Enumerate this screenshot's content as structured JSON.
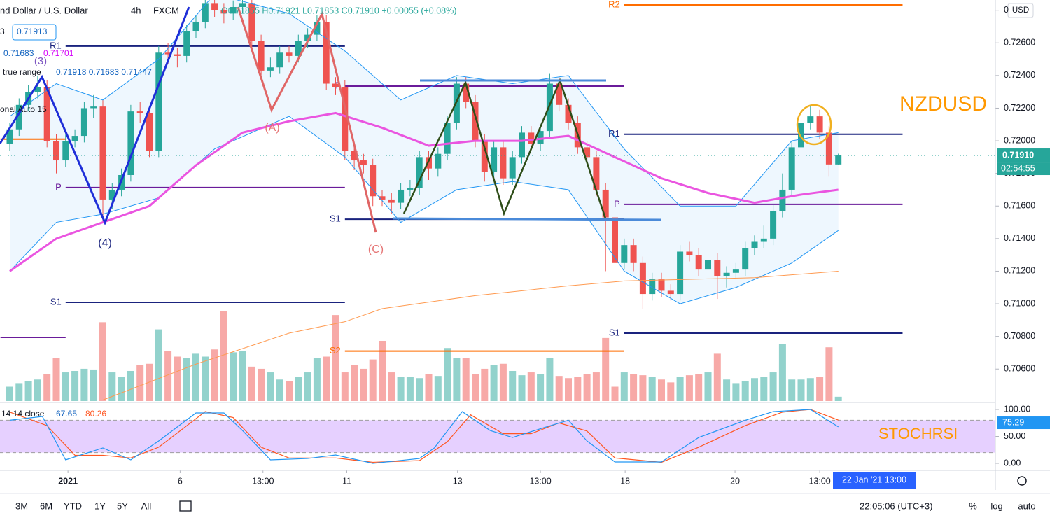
{
  "header": {
    "symbol": "nd Dollar / U.S. Dollar",
    "interval": "4h",
    "source": "FXCM",
    "ohlc": "O0.71855 H0.71921 L0.71853 C0.71910 +0.00055 (+0.08%)"
  },
  "legend": {
    "row1_a": "3",
    "row1_b": "0.71913",
    "row2_a": "0.71683",
    "row2_b": "0.71701",
    "row3_a": "true range",
    "row3_b": "0.71918 0.71683 0.71447",
    "row4": "onal Auto 15",
    "stoch_a": "14 14 close",
    "stoch_k": "67.65",
    "stoch_d": "80.26"
  },
  "toolbar": {
    "ranges": [
      "3M",
      "6M",
      "YTD",
      "1Y",
      "5Y",
      "All"
    ],
    "clock": "22:05:06 (UTC+3)",
    "pct": "%",
    "log": "log",
    "auto": "auto",
    "crosshair": "22 Jan '21  13:00"
  },
  "chart_data": {
    "type": "candlestick",
    "up_color": "#26a69a",
    "down_color": "#ef5350",
    "ylim": [
      0.70395,
      0.72863
    ],
    "yticks": [
      {
        "value": 0.728,
        "label": "0"
      },
      {
        "value": 0.726,
        "label": "0.72600"
      },
      {
        "value": 0.724,
        "label": "0.72400"
      },
      {
        "value": 0.722,
        "label": "0.72200"
      },
      {
        "value": 0.72,
        "label": "0.72000"
      },
      {
        "value": 0.718,
        "label": "0.71800"
      },
      {
        "value": 0.716,
        "label": "0.71600"
      },
      {
        "value": 0.714,
        "label": "0.71400"
      },
      {
        "value": 0.712,
        "label": "0.71200"
      },
      {
        "value": 0.71,
        "label": "0.71000"
      },
      {
        "value": 0.708,
        "label": "0.70800"
      },
      {
        "value": 0.706,
        "label": "0.70600"
      }
    ],
    "currency": "USD",
    "last_price": {
      "value": 0.7191,
      "label": "0.71910"
    },
    "countdown": "02:54:55",
    "xticks": [
      {
        "value": 6.25,
        "label": "2021"
      },
      {
        "value": 18.3,
        "label": "6"
      },
      {
        "value": 27.2,
        "label": "13:00"
      },
      {
        "value": 36.2,
        "label": "11"
      },
      {
        "value": 48.1,
        "label": "13"
      },
      {
        "value": 57,
        "label": "13:00"
      },
      {
        "value": 66.1,
        "label": "18"
      },
      {
        "value": 77.9,
        "label": "20"
      },
      {
        "value": 87,
        "label": "13:00"
      }
    ],
    "candles": [
      [
        0.7198,
        0.7211,
        0.7194,
        0.7207
      ],
      [
        0.7207,
        0.7226,
        0.7203,
        0.7222
      ],
      [
        0.7222,
        0.7234,
        0.7218,
        0.723
      ],
      [
        0.723,
        0.724,
        0.7226,
        0.7233
      ],
      [
        0.7233,
        0.7237,
        0.7196,
        0.72
      ],
      [
        0.72,
        0.7204,
        0.718,
        0.7188
      ],
      [
        0.7188,
        0.7204,
        0.7184,
        0.72
      ],
      [
        0.72,
        0.7207,
        0.7196,
        0.7203
      ],
      [
        0.7203,
        0.7224,
        0.7199,
        0.722
      ],
      [
        0.722,
        0.7228,
        0.7214,
        0.7221
      ],
      [
        0.7221,
        0.7225,
        0.715,
        0.7164
      ],
      [
        0.7164,
        0.7174,
        0.7158,
        0.717
      ],
      [
        0.717,
        0.7183,
        0.7166,
        0.7179
      ],
      [
        0.7179,
        0.7222,
        0.7175,
        0.7218
      ],
      [
        0.7218,
        0.7224,
        0.7211,
        0.7217
      ],
      [
        0.7217,
        0.7221,
        0.719,
        0.7194
      ],
      [
        0.7194,
        0.7258,
        0.719,
        0.7254
      ],
      [
        0.7254,
        0.726,
        0.7247,
        0.7253
      ],
      [
        0.7253,
        0.7257,
        0.7245,
        0.7252
      ],
      [
        0.7252,
        0.7271,
        0.7248,
        0.7267
      ],
      [
        0.7267,
        0.7277,
        0.7263,
        0.7273
      ],
      [
        0.7273,
        0.7288,
        0.7269,
        0.7284
      ],
      [
        0.7284,
        0.7288,
        0.7276,
        0.728
      ],
      [
        0.728,
        0.7284,
        0.7272,
        0.7278
      ],
      [
        0.7278,
        0.7286,
        0.7274,
        0.7282
      ],
      [
        0.7282,
        0.7288,
        0.7278,
        0.7284
      ],
      [
        0.7284,
        0.7288,
        0.7257,
        0.7261
      ],
      [
        0.7261,
        0.7265,
        0.7239,
        0.7243
      ],
      [
        0.7243,
        0.7251,
        0.7239,
        0.7245
      ],
      [
        0.7245,
        0.7258,
        0.7241,
        0.7254
      ],
      [
        0.7254,
        0.7258,
        0.7248,
        0.7252
      ],
      [
        0.7252,
        0.7265,
        0.7248,
        0.7261
      ],
      [
        0.7261,
        0.7269,
        0.7257,
        0.7265
      ],
      [
        0.7265,
        0.7277,
        0.7261,
        0.7273
      ],
      [
        0.7273,
        0.7277,
        0.7231,
        0.7235
      ],
      [
        0.7235,
        0.7239,
        0.7228,
        0.7233
      ],
      [
        0.7233,
        0.7237,
        0.7188,
        0.7194
      ],
      [
        0.7194,
        0.7198,
        0.7182,
        0.7188
      ],
      [
        0.7188,
        0.7192,
        0.718,
        0.7185
      ],
      [
        0.7185,
        0.7189,
        0.716,
        0.7166
      ],
      [
        0.7166,
        0.717,
        0.716,
        0.7164
      ],
      [
        0.7164,
        0.7168,
        0.7155,
        0.7162
      ],
      [
        0.7162,
        0.7174,
        0.7158,
        0.717
      ],
      [
        0.717,
        0.7176,
        0.7166,
        0.7171
      ],
      [
        0.7171,
        0.7194,
        0.7167,
        0.719
      ],
      [
        0.719,
        0.7194,
        0.7176,
        0.7183
      ],
      [
        0.7183,
        0.7196,
        0.7178,
        0.7192
      ],
      [
        0.7192,
        0.7215,
        0.7188,
        0.7211
      ],
      [
        0.7211,
        0.7239,
        0.7207,
        0.7235
      ],
      [
        0.7235,
        0.7239,
        0.722,
        0.7224
      ],
      [
        0.7224,
        0.7228,
        0.7196,
        0.72
      ],
      [
        0.72,
        0.7204,
        0.7175,
        0.7181
      ],
      [
        0.7181,
        0.72,
        0.7177,
        0.7196
      ],
      [
        0.7196,
        0.72,
        0.7173,
        0.7177
      ],
      [
        0.7177,
        0.7194,
        0.7173,
        0.719
      ],
      [
        0.719,
        0.7209,
        0.7186,
        0.7205
      ],
      [
        0.7205,
        0.7209,
        0.7194,
        0.7198
      ],
      [
        0.7198,
        0.721,
        0.7194,
        0.7206
      ],
      [
        0.7206,
        0.7241,
        0.7202,
        0.7235
      ],
      [
        0.7235,
        0.7239,
        0.7218,
        0.7222
      ],
      [
        0.7222,
        0.7226,
        0.7207,
        0.7211
      ],
      [
        0.7211,
        0.7215,
        0.7192,
        0.7196
      ],
      [
        0.7196,
        0.72,
        0.7185,
        0.719
      ],
      [
        0.719,
        0.7194,
        0.7166,
        0.717
      ],
      [
        0.717,
        0.7174,
        0.712,
        0.7153
      ],
      [
        0.7153,
        0.7157,
        0.712,
        0.7125
      ],
      [
        0.7125,
        0.714,
        0.7121,
        0.7136
      ],
      [
        0.7136,
        0.714,
        0.712,
        0.7125
      ],
      [
        0.7125,
        0.7129,
        0.7097,
        0.7106
      ],
      [
        0.7106,
        0.7119,
        0.7102,
        0.7115
      ],
      [
        0.7115,
        0.7119,
        0.7104,
        0.7108
      ],
      [
        0.7108,
        0.7112,
        0.7102,
        0.7106
      ],
      [
        0.7106,
        0.7136,
        0.7102,
        0.7132
      ],
      [
        0.7132,
        0.7138,
        0.7126,
        0.713
      ],
      [
        0.713,
        0.7134,
        0.7117,
        0.7121
      ],
      [
        0.7121,
        0.7136,
        0.7117,
        0.7127
      ],
      [
        0.7127,
        0.7131,
        0.7103,
        0.7117
      ],
      [
        0.7117,
        0.7123,
        0.711,
        0.7119
      ],
      [
        0.7119,
        0.7125,
        0.7115,
        0.7121
      ],
      [
        0.7121,
        0.7138,
        0.7117,
        0.7134
      ],
      [
        0.7134,
        0.7142,
        0.713,
        0.7138
      ],
      [
        0.7138,
        0.7148,
        0.7134,
        0.714
      ],
      [
        0.714,
        0.7161,
        0.7136,
        0.7157
      ],
      [
        0.7157,
        0.718,
        0.7153,
        0.717
      ],
      [
        0.717,
        0.72,
        0.7166,
        0.7196
      ],
      [
        0.7196,
        0.7215,
        0.7192,
        0.7211
      ],
      [
        0.7211,
        0.7222,
        0.7207,
        0.7215
      ],
      [
        0.7215,
        0.7219,
        0.7201,
        0.7205
      ],
      [
        0.7205,
        0.7209,
        0.7178,
        0.71855
      ],
      [
        0.71855,
        0.71921,
        0.71853,
        0.7191
      ]
    ],
    "volumes": [
      20,
      25,
      28,
      30,
      38,
      60,
      40,
      42,
      45,
      44,
      110,
      40,
      34,
      42,
      50,
      52,
      100,
      70,
      62,
      60,
      66,
      62,
      72,
      125,
      68,
      70,
      48,
      45,
      40,
      30,
      28,
      34,
      40,
      60,
      62,
      120,
      40,
      50,
      45,
      58,
      84,
      40,
      34,
      34,
      32,
      38,
      35,
      74,
      60,
      60,
      38,
      45,
      50,
      52,
      42,
      36,
      40,
      38,
      60,
      35,
      32,
      34,
      38,
      40,
      88,
      20,
      40,
      38,
      36,
      34,
      30,
      26,
      34,
      36,
      38,
      40,
      66,
      30,
      25,
      28,
      32,
      34,
      40,
      80,
      30,
      30,
      32,
      34,
      75,
      6
    ],
    "band_fill": "rgba(33,150,243,0.08)",
    "lines": [
      {
        "color": "#2196f3",
        "width": 1,
        "x": [
          0,
          5,
          10,
          16,
          22,
          30,
          36,
          42,
          48,
          54,
          60,
          66,
          72,
          78,
          84,
          89
        ],
        "values": [
          0.7215,
          0.7235,
          0.7225,
          0.725,
          0.729,
          0.7278,
          0.7255,
          0.7225,
          0.724,
          0.7235,
          0.724,
          0.7195,
          0.716,
          0.716,
          0.72,
          0.7205
        ]
      },
      {
        "color": "#2196f3",
        "width": 1,
        "x": [
          0,
          5,
          10,
          16,
          22,
          30,
          36,
          42,
          48,
          54,
          60,
          66,
          72,
          78,
          84,
          89
        ],
        "values": [
          0.712,
          0.715,
          0.7155,
          0.7165,
          0.7195,
          0.7215,
          0.719,
          0.715,
          0.717,
          0.7175,
          0.717,
          0.712,
          0.71,
          0.711,
          0.7125,
          0.7145
        ]
      },
      {
        "color": "#ff9a50",
        "width": 1,
        "x": [
          10,
          20,
          30,
          36,
          40,
          50,
          60,
          66,
          80,
          89
        ],
        "values": [
          0.7041,
          0.7063,
          0.7082,
          0.7089,
          0.7097,
          0.7105,
          0.7111,
          0.7114,
          0.7116,
          0.712
        ]
      },
      {
        "color": "#ea55e0",
        "width": 3,
        "x": [
          0,
          5,
          10,
          15,
          20,
          25,
          30,
          35,
          40,
          45,
          50,
          55,
          60,
          65,
          70,
          75,
          80,
          85,
          89
        ],
        "values": [
          0.712,
          0.714,
          0.715,
          0.716,
          0.7185,
          0.7205,
          0.7212,
          0.7217,
          0.7208,
          0.7197,
          0.72,
          0.72,
          0.7203,
          0.719,
          0.7177,
          0.7168,
          0.7162,
          0.7167,
          0.717
        ]
      }
    ],
    "pivots": [
      {
        "label": "R1",
        "value": 0.7258,
        "x": [
          6,
          36
        ],
        "color": "#1a237e"
      },
      {
        "label": "P",
        "value": 0.71713,
        "x": [
          6,
          36
        ],
        "color": "#6a1b9a"
      },
      {
        "label": "S1",
        "value": 0.71009,
        "x": [
          6,
          36
        ],
        "color": "#1a237e"
      },
      {
        "value": 0.7201,
        "x": [
          -1,
          6
        ],
        "color": "#ff6d00"
      },
      {
        "value": 0.70794,
        "x": [
          -1,
          6
        ],
        "color": "#6a1b9a"
      },
      {
        "label": "P",
        "value": 0.72335,
        "x": [
          36,
          66
        ],
        "color": "#6a1b9a"
      },
      {
        "label": "S1",
        "value": 0.71519,
        "x": [
          36,
          66
        ],
        "color": "#1a237e"
      },
      {
        "label": "S2",
        "value": 0.7071,
        "x": [
          36,
          66
        ],
        "color": "#ff6d00"
      },
      {
        "label": "R2",
        "value": 0.72833,
        "x": [
          66,
          95.9
        ],
        "color": "#ff6d00"
      },
      {
        "label": "R1",
        "value": 0.7204,
        "x": [
          66,
          95.9
        ],
        "color": "#1a237e"
      },
      {
        "label": "P",
        "value": 0.7161,
        "x": [
          66,
          95.9
        ],
        "color": "#6a1b9a"
      },
      {
        "label": "S1",
        "value": 0.7082,
        "x": [
          66,
          95.9
        ],
        "color": "#1a237e"
      }
    ],
    "annotations": {
      "w3": "(3)",
      "w4": "(4)",
      "wa": "(A)",
      "wc": "(C)",
      "symbol": "NZDUSD",
      "indicator": "STOCHRSI"
    },
    "stoch": {
      "ylim": [
        0,
        100
      ],
      "yticks": [
        {
          "value": 100,
          "label": "100.00"
        },
        {
          "value": 50,
          "label": "50.00"
        },
        {
          "value": 0,
          "label": "0.00"
        }
      ],
      "band": [
        20,
        80
      ],
      "band_color": "rgba(200,150,255,0.45)",
      "tag": {
        "value": 75.29,
        "label": "75.29"
      },
      "k": {
        "color": "#2196f3",
        "x": [
          0,
          3.5,
          6,
          10,
          13,
          16,
          20,
          23,
          25,
          28,
          32,
          35,
          39,
          44,
          45.6,
          48.6,
          51.6,
          54,
          57.6,
          60,
          62,
          65,
          70,
          74,
          79,
          82,
          86,
          89
        ],
        "values": [
          80,
          87,
          6.5,
          28.6,
          6.5,
          41.6,
          93.5,
          93.5,
          61,
          6.5,
          9,
          15.6,
          0,
          9,
          28.6,
          96,
          61,
          48,
          67.5,
          80,
          41.6,
          2.6,
          2.6,
          48,
          80,
          96,
          100,
          67.65
        ]
      },
      "d": {
        "color": "#ff5722",
        "x": [
          0,
          4,
          7,
          10,
          13,
          16,
          21,
          24,
          27,
          30,
          35,
          39,
          44,
          47,
          49.5,
          53,
          56,
          59,
          62,
          65,
          70,
          74,
          79,
          83,
          86,
          89
        ],
        "values": [
          95,
          70,
          15,
          15,
          10,
          30,
          96,
          85,
          30,
          10,
          10,
          2,
          5,
          40,
          90,
          55,
          55,
          75,
          60,
          10,
          2,
          30,
          70,
          95,
          100,
          80.26
        ]
      }
    }
  }
}
